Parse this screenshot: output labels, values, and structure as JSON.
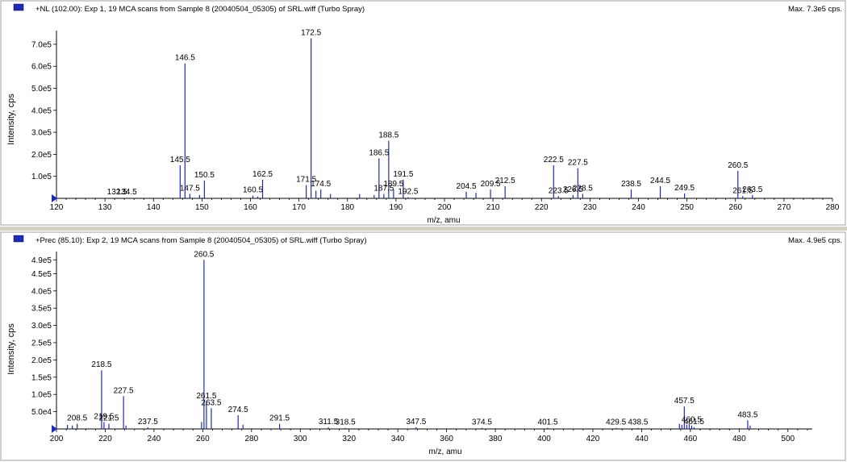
{
  "colors": {
    "series": "#1f2bb4",
    "frame": "#d4d0c8",
    "axis": "#000000"
  },
  "chart_data": [
    {
      "type": "bar",
      "header": "+NL (102.00): Exp 1, 19 MCA scans from Sample 8 (20040504_05305) of SRL.wiff (Turbo Spray)",
      "max_text": "Max. 7.3e5 cps.",
      "xlabel": "m/z, amu",
      "ylabel": "Intensity, cps",
      "xlim": [
        120,
        280
      ],
      "ylim": [
        0,
        740000
      ],
      "xticks": [
        120,
        130,
        140,
        150,
        160,
        170,
        180,
        190,
        200,
        210,
        220,
        230,
        240,
        250,
        260,
        270,
        280
      ],
      "yticks": [
        {
          "v": 100000,
          "label": "1.0e5"
        },
        {
          "v": 200000,
          "label": "2.0e5"
        },
        {
          "v": 300000,
          "label": "3.0e5"
        },
        {
          "v": 400000,
          "label": "4.0e5"
        },
        {
          "v": 500000,
          "label": "5.0e5"
        },
        {
          "v": 600000,
          "label": "6.0e5"
        },
        {
          "v": 700000,
          "label": "7.0e5"
        }
      ],
      "peaks": [
        {
          "x": 132.5,
          "y": 3000,
          "label": "132.5"
        },
        {
          "x": 134.5,
          "y": 3000,
          "label": "134.5"
        },
        {
          "x": 145.5,
          "y": 150000,
          "label": "145.5"
        },
        {
          "x": 146.5,
          "y": 613000,
          "label": "146.5"
        },
        {
          "x": 147.5,
          "y": 20000,
          "label": "147.5"
        },
        {
          "x": 149.5,
          "y": 15000
        },
        {
          "x": 150.5,
          "y": 80000,
          "label": "150.5"
        },
        {
          "x": 160.5,
          "y": 12000,
          "label": "160.5"
        },
        {
          "x": 161.5,
          "y": 8000
        },
        {
          "x": 162.5,
          "y": 85000,
          "label": "162.5"
        },
        {
          "x": 171.5,
          "y": 60000,
          "label": "171.5"
        },
        {
          "x": 172.5,
          "y": 727000,
          "label": "172.5"
        },
        {
          "x": 173.5,
          "y": 35000
        },
        {
          "x": 174.5,
          "y": 40000,
          "label": "174.5"
        },
        {
          "x": 176.5,
          "y": 20000
        },
        {
          "x": 182.5,
          "y": 20000
        },
        {
          "x": 185.5,
          "y": 15000
        },
        {
          "x": 186.5,
          "y": 182000,
          "label": "186.5"
        },
        {
          "x": 187.5,
          "y": 20000,
          "label": "187.5"
        },
        {
          "x": 188.5,
          "y": 262000,
          "label": "188.5"
        },
        {
          "x": 189.5,
          "y": 40000,
          "label": "189.5"
        },
        {
          "x": 191.5,
          "y": 85000,
          "label": "191.5"
        },
        {
          "x": 192.5,
          "y": 5000,
          "label": "192.5"
        },
        {
          "x": 204.5,
          "y": 30000,
          "label": "204.5"
        },
        {
          "x": 206.5,
          "y": 25000
        },
        {
          "x": 209.5,
          "y": 40000,
          "label": "209.5"
        },
        {
          "x": 212.5,
          "y": 55000,
          "label": "212.5"
        },
        {
          "x": 222.5,
          "y": 150000,
          "label": "222.5"
        },
        {
          "x": 223.5,
          "y": 10000,
          "label": "223.5"
        },
        {
          "x": 226.5,
          "y": 15000,
          "label": "226.5"
        },
        {
          "x": 227.5,
          "y": 137000,
          "label": "227.5"
        },
        {
          "x": 228.5,
          "y": 20000,
          "label": "228.5"
        },
        {
          "x": 238.5,
          "y": 40000,
          "label": "238.5"
        },
        {
          "x": 244.5,
          "y": 55000,
          "label": "244.5"
        },
        {
          "x": 249.5,
          "y": 22000,
          "label": "249.5"
        },
        {
          "x": 260.5,
          "y": 125000,
          "label": "260.5"
        },
        {
          "x": 261.5,
          "y": 10000,
          "label": "261.5"
        },
        {
          "x": 263.5,
          "y": 15000,
          "label": "263.5"
        }
      ]
    },
    {
      "type": "bar",
      "header": "+Prec (85.10): Exp 2, 19 MCA scans from Sample 8 (20040504_05305) of SRL.wiff (Turbo Spray)",
      "max_text": "Max. 4.9e5 cps.",
      "xlabel": "m/z, amu",
      "ylabel": "Intensity, cps",
      "xlim": [
        200,
        510
      ],
      "ylim": [
        0,
        500000
      ],
      "xticks": [
        200,
        220,
        240,
        260,
        280,
        300,
        320,
        340,
        360,
        380,
        400,
        420,
        440,
        460,
        480,
        500
      ],
      "yticks": [
        {
          "v": 50000,
          "label": "5.0e4"
        },
        {
          "v": 100000,
          "label": "1.0e5"
        },
        {
          "v": 150000,
          "label": "1.5e5"
        },
        {
          "v": 200000,
          "label": "2.0e5"
        },
        {
          "v": 250000,
          "label": "2.5e5"
        },
        {
          "v": 300000,
          "label": "3.0e5"
        },
        {
          "v": 350000,
          "label": "3.5e5"
        },
        {
          "v": 400000,
          "label": "4.0e5"
        },
        {
          "v": 450000,
          "label": "4.5e5"
        },
        {
          "v": 490000,
          "label": "4.9e5"
        }
      ],
      "peaks": [
        {
          "x": 204.5,
          "y": 12000
        },
        {
          "x": 206.5,
          "y": 10000
        },
        {
          "x": 208.5,
          "y": 15000,
          "label": "208.5"
        },
        {
          "x": 218.5,
          "y": 170000,
          "label": "218.5"
        },
        {
          "x": 219.5,
          "y": 20000,
          "label": "219.5"
        },
        {
          "x": 221.5,
          "y": 15000,
          "label": "221.5"
        },
        {
          "x": 227.5,
          "y": 95000,
          "label": "227.5"
        },
        {
          "x": 228.5,
          "y": 10000
        },
        {
          "x": 237.5,
          "y": 5000,
          "label": "237.5"
        },
        {
          "x": 259.5,
          "y": 20000
        },
        {
          "x": 260.5,
          "y": 490000,
          "label": "260.5"
        },
        {
          "x": 261.5,
          "y": 80000,
          "label": "261.5"
        },
        {
          "x": 263.5,
          "y": 60000,
          "label": "263.5"
        },
        {
          "x": 274.5,
          "y": 40000,
          "label": "274.5"
        },
        {
          "x": 276.5,
          "y": 12000
        },
        {
          "x": 291.5,
          "y": 15000,
          "label": "291.5"
        },
        {
          "x": 311.5,
          "y": 5000,
          "label": "311.5"
        },
        {
          "x": 318.5,
          "y": 3000,
          "label": "318.5"
        },
        {
          "x": 347.5,
          "y": 5000,
          "label": "347.5"
        },
        {
          "x": 374.5,
          "y": 3000,
          "label": "374.5"
        },
        {
          "x": 401.5,
          "y": 3000,
          "label": "401.5"
        },
        {
          "x": 429.5,
          "y": 3000,
          "label": "429.5"
        },
        {
          "x": 438.5,
          "y": 3000,
          "label": "438.5"
        },
        {
          "x": 455.5,
          "y": 15000
        },
        {
          "x": 456.5,
          "y": 12000
        },
        {
          "x": 457.5,
          "y": 65000,
          "label": "457.5"
        },
        {
          "x": 458.5,
          "y": 12000
        },
        {
          "x": 459.5,
          "y": 15000
        },
        {
          "x": 460.5,
          "y": 10000,
          "label": "460.5"
        },
        {
          "x": 461.5,
          "y": 5000,
          "label": "461.5"
        },
        {
          "x": 483.5,
          "y": 25000,
          "label": "483.5"
        },
        {
          "x": 484.5,
          "y": 10000
        }
      ]
    }
  ]
}
